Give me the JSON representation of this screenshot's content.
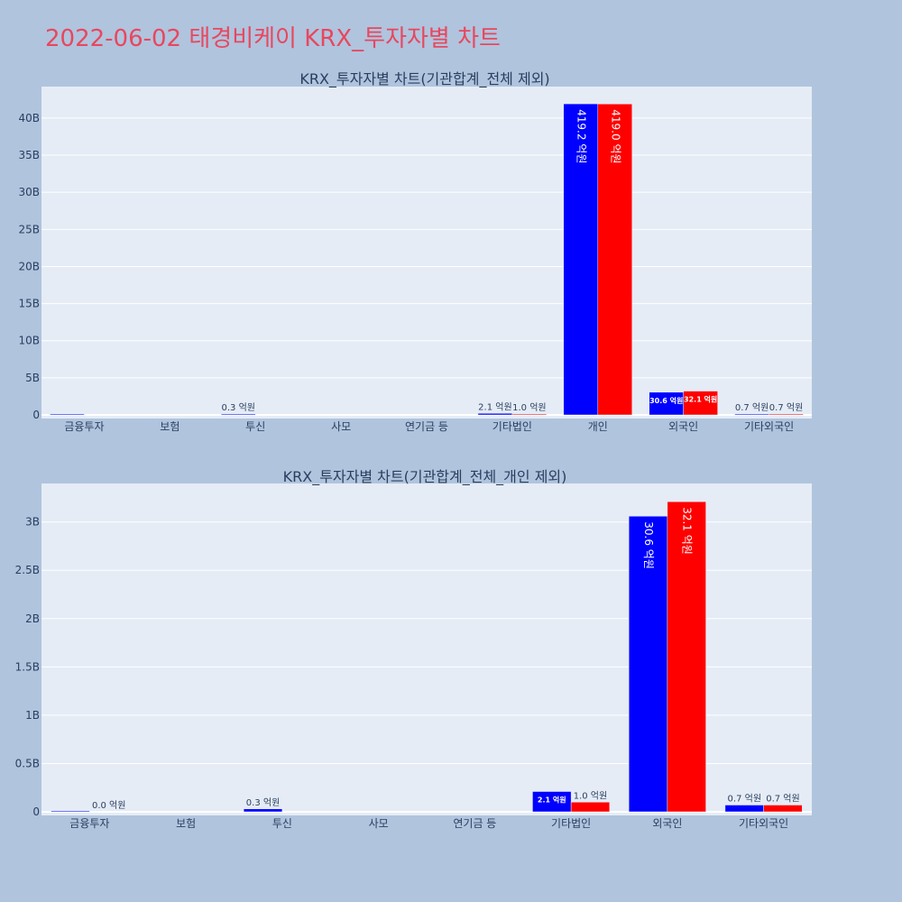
{
  "page": {
    "title": "2022-06-02 태경비케이 KRX_투자자별 차트"
  },
  "colors": {
    "background": "#b0c4de",
    "plot_bg": "#e5ecf6",
    "title": "#e8475e",
    "text": "#2a3f5f",
    "sell": "#0000ff",
    "buy": "#ff0000"
  },
  "chart_data": [
    {
      "type": "bar",
      "title": "KRX_투자자별 차트(기관합계_전체 제외)",
      "categories": [
        "금융투자",
        "보험",
        "투신",
        "사모",
        "연기금 등",
        "기타법인",
        "개인",
        "외국인",
        "기타외국인"
      ],
      "series": [
        {
          "color": "#0000ff",
          "values": [
            0.002,
            0,
            0.03,
            0,
            0,
            0.21,
            41.92,
            3.06,
            0.07
          ],
          "labels": [
            "",
            "",
            "0.3 억원",
            "",
            "",
            "2.1 억원",
            "419.2 억원",
            "30.6 억원",
            "0.7 억원"
          ]
        },
        {
          "color": "#ff0000",
          "values": [
            0,
            0,
            0,
            0,
            0,
            0.1,
            41.9,
            3.21,
            0.07
          ],
          "labels": [
            "",
            "",
            "",
            "",
            "",
            "1.0 억원",
            "419.0 억원",
            "32.1 억원",
            "0.7 억원"
          ]
        }
      ],
      "yticks": [
        0,
        5,
        10,
        15,
        20,
        25,
        30,
        35,
        40
      ],
      "ytick_labels": [
        "0",
        "5B",
        "10B",
        "15B",
        "20B",
        "25B",
        "30B",
        "35B",
        "40B"
      ],
      "ylim": [
        0,
        44
      ],
      "grid": true,
      "legend": "none"
    },
    {
      "type": "bar",
      "title": "KRX_투자자별 차트(기관합계_전체_개인 제외)",
      "categories": [
        "금융투자",
        "보험",
        "투신",
        "사모",
        "연기금 등",
        "기타법인",
        "외국인",
        "기타외국인"
      ],
      "series": [
        {
          "color": "#0000ff",
          "values": [
            0.002,
            0,
            0.03,
            0,
            0,
            0.21,
            3.06,
            0.07
          ],
          "labels": [
            "",
            "",
            "0.3 억원",
            "",
            "",
            "2.1 억원",
            "30.6 억원",
            "0.7 억원"
          ]
        },
        {
          "color": "#ff0000",
          "values": [
            0.0,
            0,
            0,
            0,
            0,
            0.1,
            3.21,
            0.07
          ],
          "labels": [
            "0.0 억원",
            "",
            "",
            "",
            "",
            "1.0 억원",
            "32.1 억원",
            "0.7 억원"
          ]
        }
      ],
      "yticks": [
        0,
        0.5,
        1,
        1.5,
        2,
        2.5,
        3
      ],
      "ytick_labels": [
        "0",
        "0.5B",
        "1B",
        "1.5B",
        "2B",
        "2.5B",
        "3B"
      ],
      "ylim": [
        0,
        3.38
      ],
      "grid": true,
      "legend": "none"
    }
  ]
}
